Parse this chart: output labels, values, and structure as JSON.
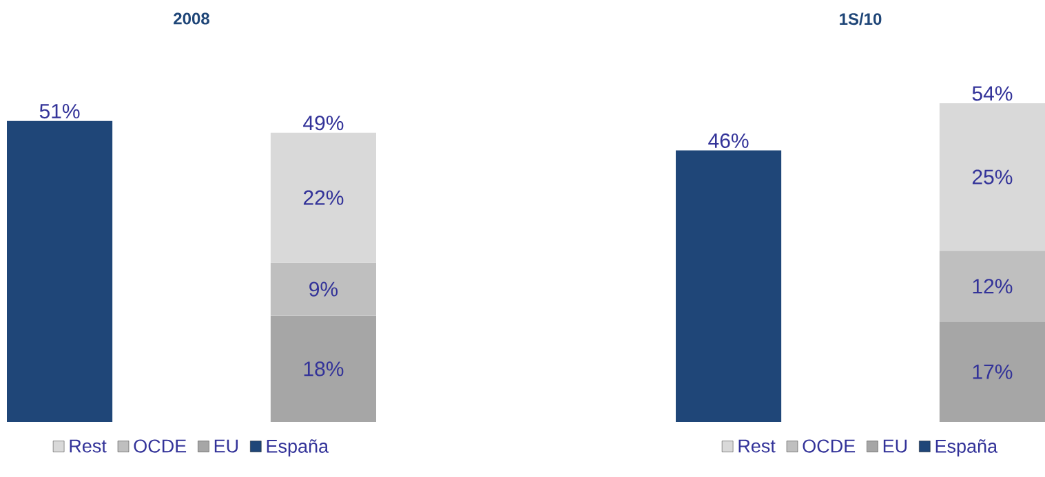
{
  "chart_data": [
    {
      "type": "bar",
      "title": "2008",
      "stacked": true,
      "legend": "bottom",
      "categories": [
        null,
        null
      ],
      "totals": [
        null,
        "49%"
      ],
      "series": [
        {
          "name": "España",
          "color": "#1f4678",
          "values": [
            51,
            null
          ],
          "value_labels": [
            "51%",
            null
          ]
        },
        {
          "name": "EU",
          "color": "#a6a6a6",
          "values": [
            null,
            18
          ],
          "value_labels": [
            null,
            "18%"
          ]
        },
        {
          "name": "OCDE",
          "color": "#bfbfbf",
          "values": [
            null,
            9
          ],
          "value_labels": [
            null,
            "9%"
          ]
        },
        {
          "name": "Rest",
          "color": "#d9d9d9",
          "values": [
            null,
            22
          ],
          "value_labels": [
            null,
            "22%"
          ]
        }
      ]
    },
    {
      "type": "bar",
      "title": "1S/10",
      "stacked": true,
      "legend": "bottom",
      "categories": [
        null,
        null
      ],
      "totals": [
        null,
        "54%"
      ],
      "series": [
        {
          "name": "España",
          "color": "#1f4678",
          "values": [
            46,
            null
          ],
          "value_labels": [
            "46%",
            null
          ]
        },
        {
          "name": "EU",
          "color": "#a6a6a6",
          "values": [
            null,
            17
          ],
          "value_labels": [
            null,
            "17%"
          ]
        },
        {
          "name": "OCDE",
          "color": "#bfbfbf",
          "values": [
            null,
            12
          ],
          "value_labels": [
            null,
            "12%"
          ]
        },
        {
          "name": "Rest",
          "color": "#d9d9d9",
          "values": [
            null,
            25
          ],
          "value_labels": [
            null,
            "25%"
          ]
        }
      ]
    }
  ]
}
